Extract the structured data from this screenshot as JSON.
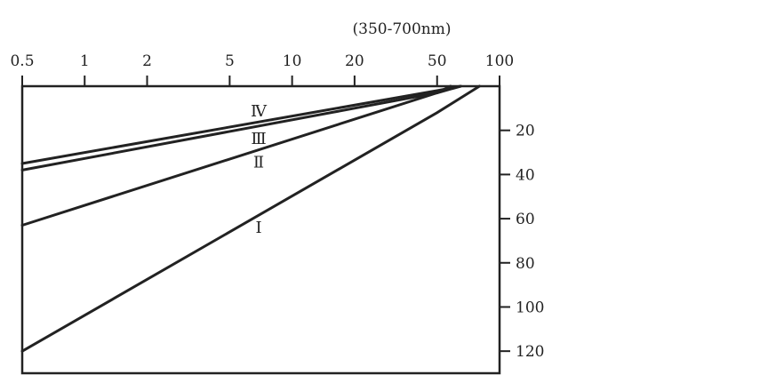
{
  "chart_data": {
    "type": "line",
    "title": "",
    "xlabel": "(350-700nm)",
    "ylabel": "",
    "x_scale": "log",
    "xlim": [
      0.5,
      100
    ],
    "ylim": [
      0,
      130
    ],
    "x_axis_position": "top",
    "y_axis_position": "right",
    "y_inverted": true,
    "grid": false,
    "x_ticks": [
      0.5,
      1,
      2,
      5,
      10,
      20,
      50,
      100
    ],
    "x_tick_labels": [
      "0.5",
      "1",
      "2",
      "5",
      "10",
      "20",
      "50",
      "100"
    ],
    "y_ticks": [
      20,
      40,
      60,
      80,
      100,
      120
    ],
    "y_tick_labels": [
      "20",
      "40",
      "60",
      "80",
      "100",
      "120"
    ],
    "line_color": "#222222",
    "series": [
      {
        "name": "Ⅳ",
        "points": [
          [
            0.5,
            35
          ],
          [
            50,
            2
          ],
          [
            65,
            0
          ]
        ]
      },
      {
        "name": "Ⅲ",
        "points": [
          [
            0.5,
            38
          ],
          [
            50,
            3
          ],
          [
            65,
            0
          ]
        ]
      },
      {
        "name": "Ⅱ",
        "points": [
          [
            0.5,
            63
          ],
          [
            50,
            3
          ],
          [
            58,
            0
          ]
        ]
      },
      {
        "name": "Ⅰ",
        "points": [
          [
            0.5,
            120
          ],
          [
            50,
            12
          ],
          [
            80,
            0
          ]
        ]
      }
    ]
  }
}
